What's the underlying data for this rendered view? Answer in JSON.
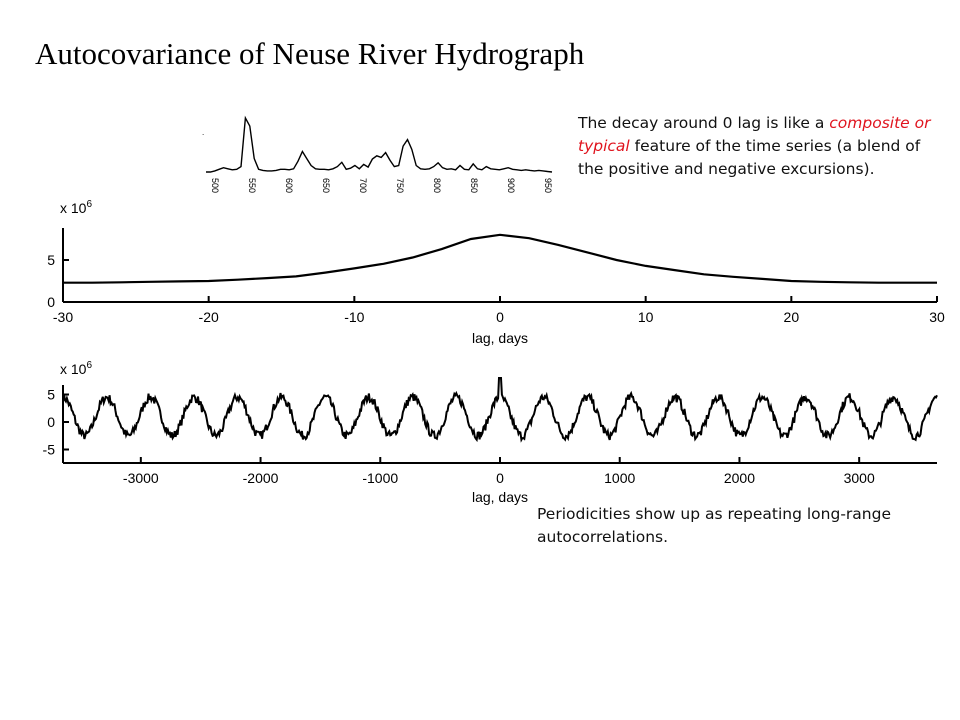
{
  "title": "Autocovariance of Neuse River Hydrograph",
  "notes": {
    "top": {
      "part1": "The decay around 0 lag is like a",
      "highlight": "composite or typical",
      "part2": "feature of the time series (a blend of the positive and negative excursions)."
    },
    "bottom": "Periodicities show up as repeating long-range autocorrelations."
  },
  "colors": {
    "highlight": "#e0141e",
    "line": "#000000"
  },
  "chart_data": [
    {
      "type": "line",
      "name": "inset-hydrograph",
      "xticks": [
        "500",
        "550",
        "600",
        "650",
        "700",
        "750",
        "800",
        "850",
        "900",
        "950"
      ],
      "y": [
        0.0,
        0.0,
        0.02,
        0.05,
        0.08,
        0.06,
        0.04,
        0.05,
        0.1,
        1.0,
        0.85,
        0.25,
        0.05,
        0.03,
        0.02,
        0.02,
        0.03,
        0.05,
        0.05,
        0.04,
        0.06,
        0.2,
        0.38,
        0.25,
        0.12,
        0.06,
        0.05,
        0.05,
        0.04,
        0.06,
        0.1,
        0.18,
        0.05,
        0.07,
        0.12,
        0.06,
        0.14,
        0.09,
        0.24,
        0.3,
        0.27,
        0.36,
        0.22,
        0.1,
        0.12,
        0.48,
        0.6,
        0.42,
        0.12,
        0.06,
        0.05,
        0.06,
        0.1,
        0.17,
        0.08,
        0.05,
        0.06,
        0.04,
        0.12,
        0.05,
        0.04,
        0.15,
        0.06,
        0.04,
        0.1,
        0.06,
        0.05,
        0.04,
        0.06,
        0.08,
        0.05,
        0.04,
        0.03,
        0.04,
        0.03,
        0.02,
        0.03,
        0.02,
        0.01,
        0.0
      ],
      "xlim": [
        480,
        1000
      ]
    },
    {
      "type": "line",
      "name": "autocovariance-short",
      "xlabel": "lag, days",
      "ylabel": "x 10^6",
      "ylabel_base": "x 10",
      "ylabel_exp": "6",
      "xlim": [
        -30,
        30
      ],
      "ylim": [
        0,
        10
      ],
      "xticks": [
        -30,
        -20,
        -10,
        0,
        10,
        20,
        30
      ],
      "xtick_labels": [
        "-30",
        "-20",
        "-10",
        "0",
        "10",
        "20",
        "30"
      ],
      "yticks": [
        0,
        5
      ],
      "ytick_labels": [
        "0",
        "5"
      ],
      "x": [
        -30,
        -28,
        -26,
        -24,
        -22,
        -20,
        -18,
        -16,
        -14,
        -12,
        -10,
        -8,
        -6,
        -4,
        -2,
        0,
        2,
        4,
        6,
        8,
        10,
        12,
        14,
        16,
        18,
        20,
        22,
        24,
        26,
        28,
        30
      ],
      "y": [
        2.3,
        2.3,
        2.35,
        2.4,
        2.45,
        2.5,
        2.65,
        2.85,
        3.05,
        3.5,
        4.0,
        4.55,
        5.3,
        6.3,
        7.5,
        8.0,
        7.6,
        6.8,
        5.9,
        5.0,
        4.3,
        3.8,
        3.3,
        3.0,
        2.75,
        2.5,
        2.4,
        2.35,
        2.3,
        2.3,
        2.3
      ]
    },
    {
      "type": "line",
      "name": "autocovariance-long",
      "xlabel": "lag, days",
      "ylabel": "x 10^6",
      "ylabel_base": "x 10",
      "ylabel_exp": "6",
      "xlim": [
        -3650,
        3650
      ],
      "ylim": [
        -8,
        8
      ],
      "xticks": [
        -3000,
        -2000,
        -1000,
        0,
        1000,
        2000,
        3000
      ],
      "xtick_labels": [
        "-3000",
        "-2000",
        "-1000",
        "0",
        "1000",
        "2000",
        "3000"
      ],
      "yticks": [
        -5,
        0,
        5
      ],
      "ytick_labels": [
        "-5",
        "0",
        "5"
      ],
      "period_days": 365,
      "amplitude": 3.5,
      "offset": 1.0,
      "peak_at_zero": 8.0
    }
  ]
}
